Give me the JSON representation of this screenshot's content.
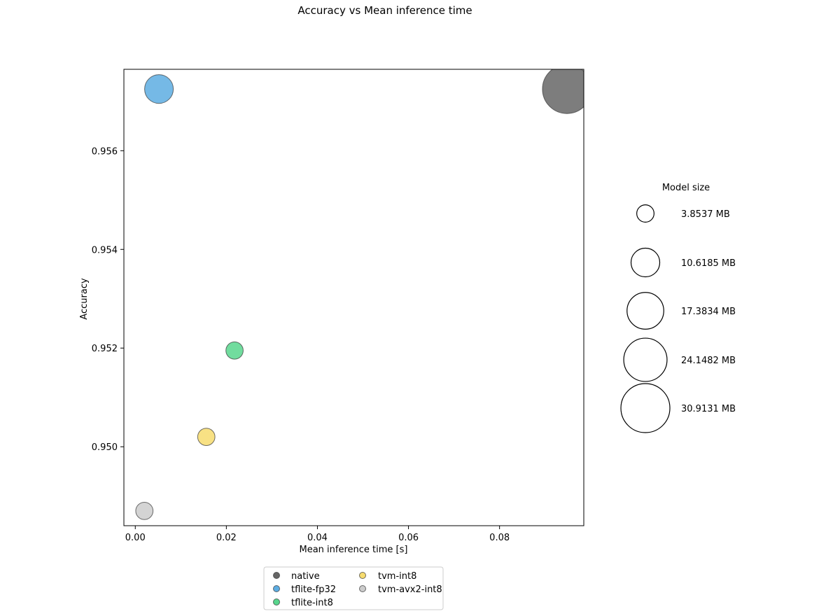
{
  "chart_data": {
    "type": "scatter",
    "title": "Accuracy vs Mean inference time",
    "xlabel": "Mean inference time [s]",
    "ylabel": "Accuracy",
    "xlim": [
      -0.0025,
      0.0985
    ],
    "ylim": [
      0.9484,
      0.95765
    ],
    "xticks": [
      0.0,
      0.02,
      0.04,
      0.06,
      0.08
    ],
    "xtick_labels": [
      "0.00",
      "0.02",
      "0.04",
      "0.06",
      "0.08"
    ],
    "yticks": [
      0.95,
      0.952,
      0.954,
      0.956
    ],
    "ytick_labels": [
      "0.950",
      "0.952",
      "0.954",
      "0.956"
    ],
    "grid": false,
    "series": [
      {
        "name": "native",
        "color": "#666666",
        "x": 0.0948,
        "y": 0.95725,
        "size_mb": 30.9131
      },
      {
        "name": "tflite-fp32",
        "color": "#5dade2",
        "x": 0.0052,
        "y": 0.95725,
        "size_mb": 10.6185
      },
      {
        "name": "tflite-int8",
        "color": "#58d68d",
        "x": 0.0218,
        "y": 0.95195,
        "size_mb": 3.8537
      },
      {
        "name": "tvm-int8",
        "color": "#f7dc6f",
        "x": 0.0156,
        "y": 0.9502,
        "size_mb": 3.8537
      },
      {
        "name": "tvm-avx2-int8",
        "color": "#cccccc",
        "x": 0.002,
        "y": 0.9487,
        "size_mb": 3.8537
      }
    ],
    "size_legend": {
      "title": "Model size",
      "entries": [
        {
          "label": "3.8537 MB",
          "size_mb": 3.8537
        },
        {
          "label": "10.6185 MB",
          "size_mb": 10.6185
        },
        {
          "label": "17.3834 MB",
          "size_mb": 17.3834
        },
        {
          "label": "24.1482 MB",
          "size_mb": 24.1482
        },
        {
          "label": "30.9131 MB",
          "size_mb": 30.9131
        }
      ]
    },
    "legend_placement": "bottom-center"
  }
}
